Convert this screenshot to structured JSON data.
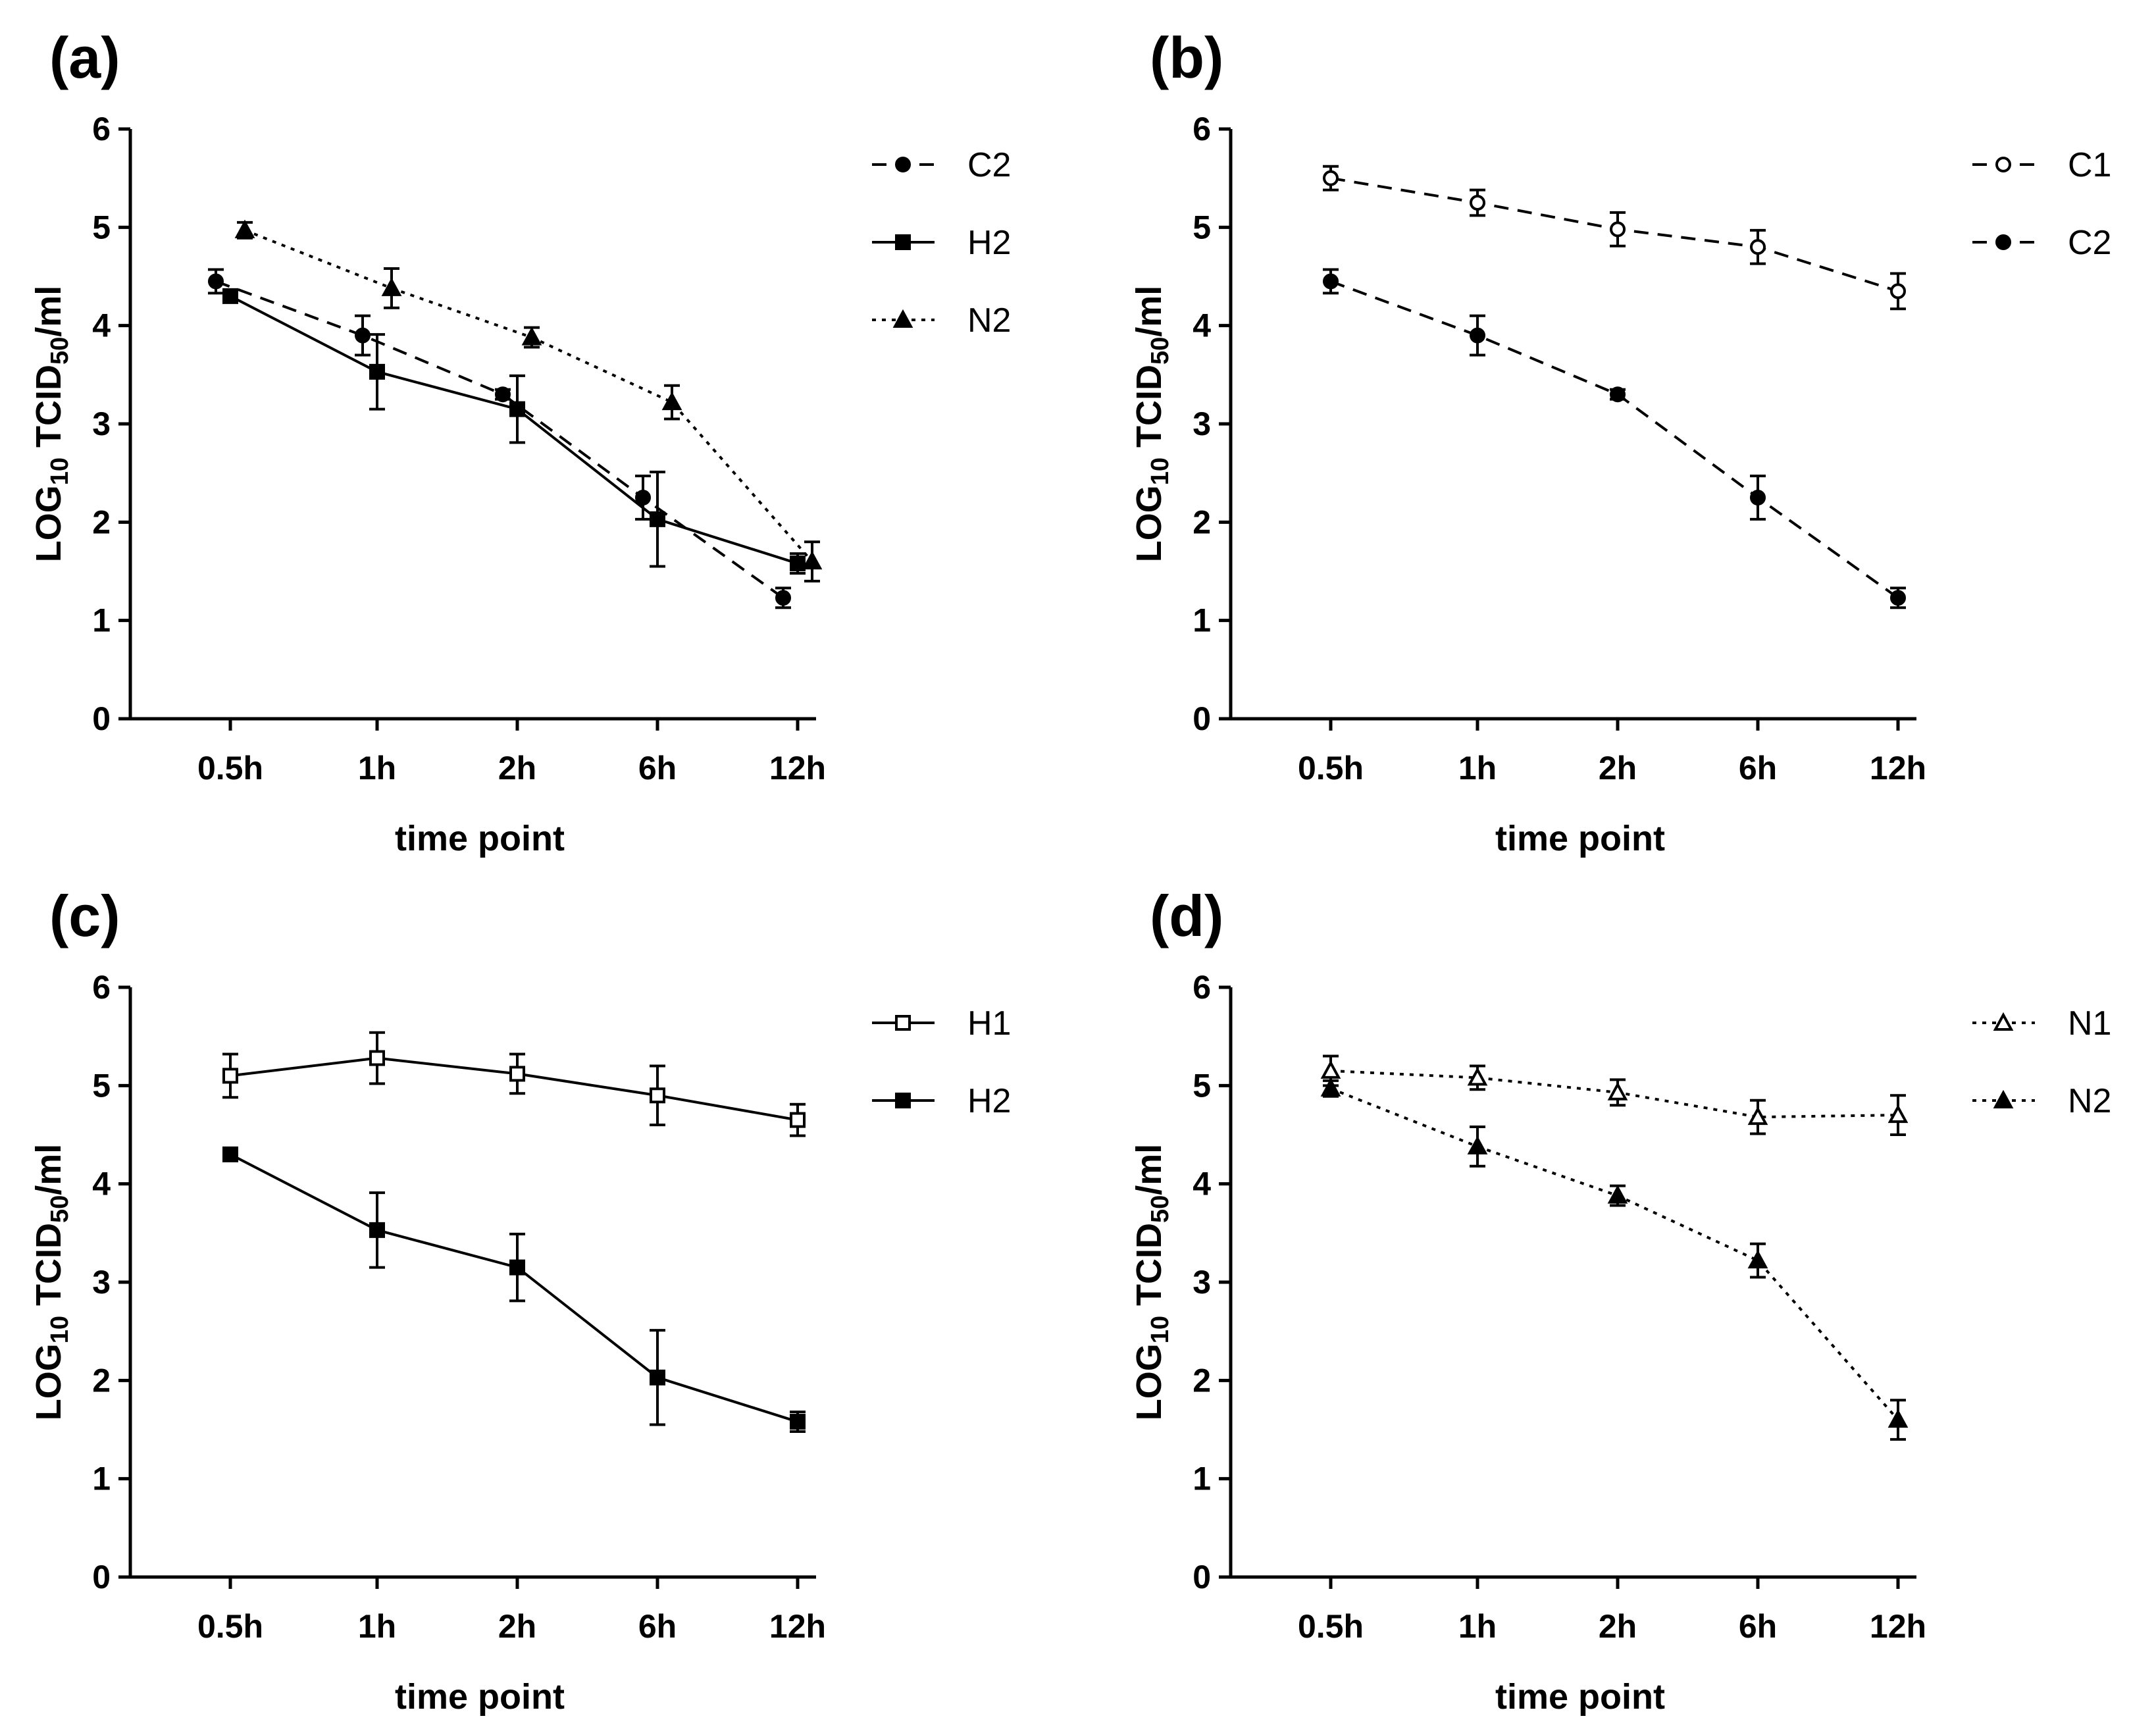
{
  "figure": {
    "panels": [
      "(a)",
      "(b)",
      "(c)",
      "(d)"
    ]
  },
  "chart_data": [
    {
      "id": "a",
      "panel_label": "(a)",
      "type": "line",
      "categories": [
        "0.5h",
        "1h",
        "2h",
        "6h",
        "12h"
      ],
      "xlabel": "time point",
      "ylabel": "LOG10 TCID50/ml",
      "ylabel_parts": {
        "main": "LOG",
        "sub1": "10",
        "mid": " TCID",
        "sub2": "50",
        "end": "/ml"
      },
      "ylim": [
        0,
        6
      ],
      "yticks": [
        "0",
        "1",
        "2",
        "3",
        "4",
        "5",
        "6"
      ],
      "grid": false,
      "legend_position": "top-right",
      "series": [
        {
          "name": "C2",
          "values": [
            4.45,
            3.9,
            3.3,
            2.25,
            1.23
          ],
          "errors": [
            0.12,
            0.2,
            0.05,
            0.22,
            0.1
          ],
          "marker": "circle-filled",
          "line": "dashed"
        },
        {
          "name": "H2",
          "values": [
            4.3,
            3.53,
            3.15,
            2.03,
            1.58
          ],
          "errors": [
            0.05,
            0.38,
            0.34,
            0.48,
            0.1
          ],
          "marker": "square-filled",
          "line": "solid"
        },
        {
          "name": "N2",
          "values": [
            4.97,
            4.38,
            3.88,
            3.22,
            1.6
          ],
          "errors": [
            0.08,
            0.2,
            0.1,
            0.17,
            0.2
          ],
          "marker": "triangle-filled",
          "line": "dotted"
        }
      ]
    },
    {
      "id": "b",
      "panel_label": "(b)",
      "type": "line",
      "categories": [
        "0.5h",
        "1h",
        "2h",
        "6h",
        "12h"
      ],
      "xlabel": "time point",
      "ylabel": "LOG10 TCID50/ml",
      "ylabel_parts": {
        "main": "LOG",
        "sub1": "10",
        "mid": " TCID",
        "sub2": "50",
        "end": "/ml"
      },
      "ylim": [
        0,
        6
      ],
      "yticks": [
        "0",
        "1",
        "2",
        "3",
        "4",
        "5",
        "6"
      ],
      "grid": false,
      "legend_position": "top-right",
      "series": [
        {
          "name": "C1",
          "values": [
            5.5,
            5.25,
            4.98,
            4.8,
            4.35
          ],
          "errors": [
            0.12,
            0.13,
            0.17,
            0.17,
            0.18
          ],
          "marker": "circle-open",
          "line": "dashed"
        },
        {
          "name": "C2",
          "values": [
            4.45,
            3.9,
            3.3,
            2.25,
            1.23
          ],
          "errors": [
            0.12,
            0.2,
            0.05,
            0.22,
            0.1
          ],
          "marker": "circle-filled",
          "line": "dashed"
        }
      ]
    },
    {
      "id": "c",
      "panel_label": "(c)",
      "type": "line",
      "categories": [
        "0.5h",
        "1h",
        "2h",
        "6h",
        "12h"
      ],
      "xlabel": "time point",
      "ylabel": "LOG10 TCID50/ml",
      "ylabel_parts": {
        "main": "LOG",
        "sub1": "10",
        "mid": " TCID",
        "sub2": "50",
        "end": "/ml"
      },
      "ylim": [
        0,
        6
      ],
      "yticks": [
        "0",
        "1",
        "2",
        "3",
        "4",
        "5",
        "6"
      ],
      "grid": false,
      "legend_position": "top-right",
      "series": [
        {
          "name": "H1",
          "values": [
            5.1,
            5.28,
            5.12,
            4.9,
            4.65
          ],
          "errors": [
            0.22,
            0.26,
            0.2,
            0.3,
            0.16
          ],
          "marker": "square-open",
          "line": "solid"
        },
        {
          "name": "H2",
          "values": [
            4.3,
            3.53,
            3.15,
            2.03,
            1.58
          ],
          "errors": [
            0.05,
            0.38,
            0.34,
            0.48,
            0.1
          ],
          "marker": "square-filled",
          "line": "solid"
        }
      ]
    },
    {
      "id": "d",
      "panel_label": "(d)",
      "type": "line",
      "categories": [
        "0.5h",
        "1h",
        "2h",
        "6h",
        "12h"
      ],
      "xlabel": "time point",
      "ylabel": "LOG10 TCID50/ml",
      "ylabel_parts": {
        "main": "LOG",
        "sub1": "10",
        "mid": " TCID",
        "sub2": "50",
        "end": "/ml"
      },
      "ylim": [
        0,
        6
      ],
      "yticks": [
        "0",
        "1",
        "2",
        "3",
        "4",
        "5",
        "6"
      ],
      "grid": false,
      "legend_position": "top-right",
      "series": [
        {
          "name": "N1",
          "values": [
            5.15,
            5.08,
            4.93,
            4.68,
            4.7
          ],
          "errors": [
            0.15,
            0.12,
            0.13,
            0.17,
            0.2
          ],
          "marker": "triangle-open",
          "line": "dotted"
        },
        {
          "name": "N2",
          "values": [
            4.97,
            4.38,
            3.88,
            3.22,
            1.6
          ],
          "errors": [
            0.08,
            0.2,
            0.1,
            0.17,
            0.2
          ],
          "marker": "triangle-filled",
          "line": "dotted"
        }
      ]
    }
  ]
}
